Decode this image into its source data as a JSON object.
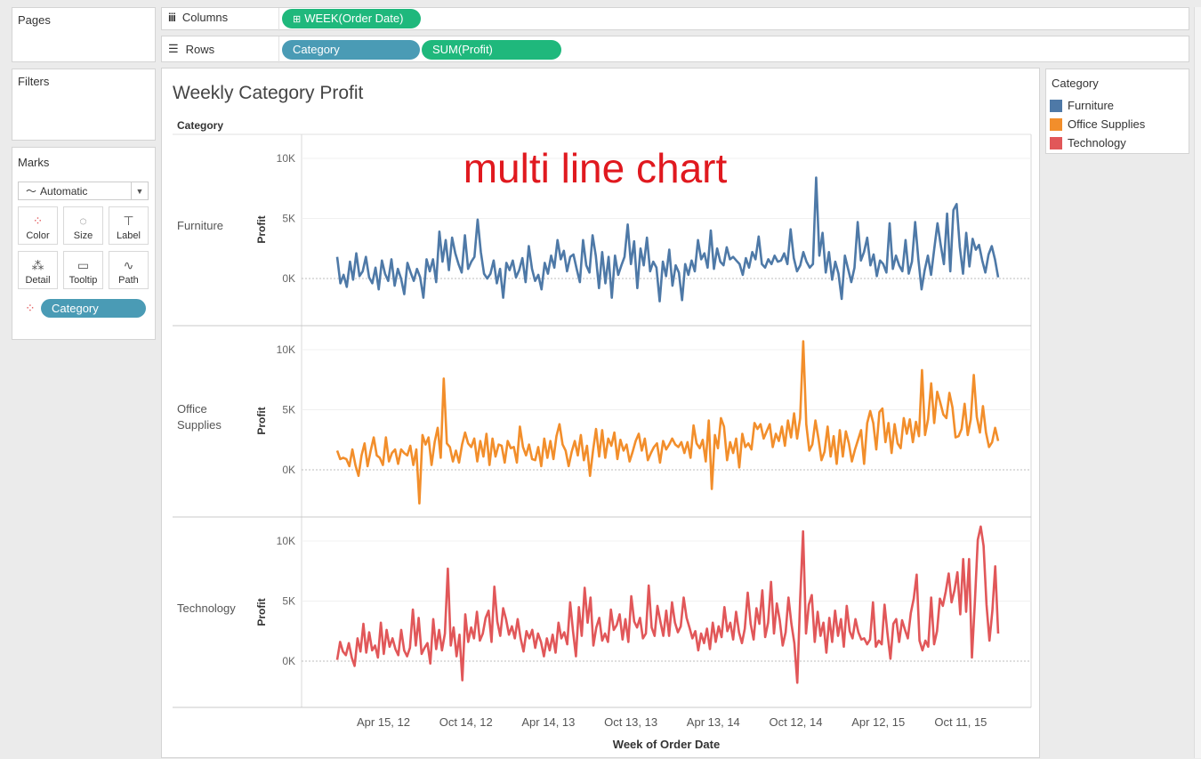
{
  "shelves": {
    "pages_label": "Pages",
    "columns_label": "Columns",
    "rows_label": "Rows",
    "filters_label": "Filters",
    "columns_pill": "WEEK(Order Date)",
    "rows_pills": [
      "Category",
      "SUM(Profit)"
    ]
  },
  "marks": {
    "title": "Marks",
    "type": "Automatic",
    "buttons": [
      "Color",
      "Size",
      "Label",
      "Detail",
      "Tooltip",
      "Path"
    ],
    "field_pill": "Category"
  },
  "legend": {
    "title": "Category",
    "items": [
      {
        "label": "Furniture",
        "color": "#4e79a7"
      },
      {
        "label": "Office Supplies",
        "color": "#f28e2b"
      },
      {
        "label": "Technology",
        "color": "#e15759"
      }
    ]
  },
  "colors": {
    "columns_pill": "#1fb87c",
    "category_pill": "#4a9bb5",
    "profit_pill": "#1fb87c",
    "overlay": "#e0191f"
  },
  "sheet": {
    "title": "Weekly Category Profit",
    "row_header": "Category",
    "overlay_text": "multi line chart"
  },
  "chart_data": {
    "type": "line",
    "title": "Weekly Category Profit",
    "xlabel": "Week of Order Date",
    "ylabel": "Profit",
    "x_ticks": [
      "Apr 15, 12",
      "Oct 14, 12",
      "Apr 14, 13",
      "Oct 13, 13",
      "Apr 13, 14",
      "Oct 12, 14",
      "Apr 12, 15",
      "Oct 11, 15"
    ],
    "y_ticks": [
      "0K",
      "5K",
      "10K"
    ],
    "ylim": [
      -2500,
      11500
    ],
    "grid": true,
    "legend": "right",
    "series": [
      {
        "name": "Furniture",
        "values": [
          1.8,
          -0.4,
          0.3,
          -0.7,
          1.4,
          -0.1,
          2.1,
          0.2,
          0.6,
          1.8,
          0.1,
          -0.4,
          0.9,
          -0.9,
          1.5,
          0.4,
          -0.2,
          1.6,
          -0.6,
          0.8,
          0.0,
          -1.3,
          1.3,
          0.5,
          -0.2,
          0.8,
          0.1,
          -1.6,
          1.6,
          0.6,
          1.6,
          -0.3,
          3.9,
          1.4,
          3.2,
          0.7,
          3.4,
          2.1,
          1.2,
          0.5,
          3.6,
          0.8,
          1.4,
          1.8,
          4.9,
          2.2,
          0.4,
          0.0,
          0.4,
          1.5,
          -0.4,
          0.8,
          -1.6,
          1.3,
          0.7,
          1.5,
          0.1,
          0.7,
          1.7,
          -0.3,
          2.7,
          0.8,
          -0.2,
          0.3,
          -0.9,
          1.3,
          0.4,
          1.9,
          0.9,
          3.2,
          1.6,
          2.3,
          0.6,
          1.8,
          2.0,
          0.8,
          -0.3,
          3.2,
          1.1,
          0.5,
          3.6,
          1.9,
          -0.8,
          2.2,
          -0.4,
          1.8,
          -1.6,
          1.9,
          0.3,
          1.1,
          1.8,
          4.5,
          1.2,
          3.1,
          -0.8,
          2.5,
          1.1,
          3.4,
          0.6,
          1.4,
          0.9,
          -1.9,
          1.4,
          0.2,
          2.4,
          -0.6,
          1.1,
          0.5,
          -1.8,
          1.2,
          0.3,
          1.5,
          0.6,
          3.2,
          1.6,
          2.1,
          0.9,
          4.0,
          0.8,
          2.5,
          1.4,
          1.1,
          2.6,
          1.6,
          1.8,
          1.5,
          1.2,
          0.3,
          1.7,
          0.9,
          2.2,
          1.6,
          3.5,
          1.2,
          0.9,
          1.6,
          1.2,
          1.9,
          1.4,
          1.5,
          2.1,
          1.2,
          4.1,
          1.7,
          0.6,
          1.1,
          2.2,
          1.4,
          0.9,
          1.2,
          8.4,
          1.9,
          3.8,
          0.5,
          2.2,
          -0.1,
          1.4,
          0.4,
          -1.7,
          1.9,
          0.8,
          -0.3,
          0.9,
          4.7,
          1.5,
          2.2,
          3.4,
          1.1,
          2.0,
          0.2,
          1.5,
          1.2,
          0.5,
          4.6,
          0.8,
          1.9,
          1.1,
          0.6,
          3.2,
          0.4,
          1.4,
          4.7,
          1.6,
          -0.9,
          0.7,
          1.9,
          0.3,
          2.5,
          4.6,
          2.8,
          1.2,
          5.4,
          0.6,
          5.7,
          6.2,
          2.6,
          0.4,
          3.8,
          1.0,
          3.3,
          2.4,
          2.8,
          1.5,
          0.5,
          2.0,
          2.7,
          1.6,
          0.1
        ]
      },
      {
        "name": "Office Supplies",
        "values": [
          1.6,
          0.9,
          1.0,
          0.9,
          0.3,
          1.7,
          0.4,
          -0.5,
          1.2,
          2.2,
          0.3,
          1.6,
          2.7,
          1.2,
          1.0,
          0.4,
          2.7,
          0.7,
          1.4,
          1.7,
          0.5,
          1.7,
          1.4,
          1.2,
          2.0,
          0.4,
          1.7,
          -2.8,
          2.9,
          2.1,
          2.7,
          0.4,
          2.3,
          3.5,
          1.0,
          7.6,
          2.2,
          1.9,
          0.7,
          1.6,
          0.6,
          2.1,
          3.1,
          2.2,
          1.9,
          2.6,
          0.7,
          2.4,
          1.1,
          3.0,
          0.4,
          2.6,
          1.1,
          2.1,
          2.0,
          0.6,
          2.4,
          1.8,
          1.9,
          0.6,
          3.6,
          1.9,
          1.2,
          2.1,
          0.9,
          0.8,
          1.9,
          0.3,
          2.6,
          1.0,
          2.4,
          0.9,
          2.8,
          3.8,
          2.1,
          1.6,
          0.3,
          1.5,
          2.4,
          1.2,
          2.9,
          0.8,
          2.0,
          -0.5,
          1.6,
          3.4,
          1.1,
          3.3,
          1.0,
          2.6,
          2.0,
          3.1,
          0.9,
          2.5,
          1.6,
          2.1,
          0.7,
          1.5,
          2.4,
          3.0,
          1.6,
          2.6,
          0.8,
          1.4,
          1.9,
          2.2,
          0.6,
          2.4,
          1.7,
          2.1,
          2.6,
          2.1,
          1.9,
          2.3,
          1.4,
          2.3,
          1.0,
          3.7,
          2.2,
          1.8,
          2.5,
          0.7,
          4.1,
          -1.6,
          2.9,
          1.8,
          4.3,
          3.6,
          0.8,
          2.3,
          1.4,
          2.6,
          0.2,
          3.0,
          1.9,
          2.2,
          1.7,
          3.9,
          3.4,
          3.8,
          2.6,
          3.2,
          3.8,
          1.9,
          3.0,
          2.4,
          3.6,
          2.0,
          4.1,
          2.7,
          4.7,
          2.6,
          4.3,
          10.7,
          3.8,
          1.6,
          2.1,
          4.1,
          2.6,
          0.8,
          1.5,
          3.6,
          1.1,
          2.8,
          0.5,
          3.3,
          1.1,
          3.2,
          2.2,
          0.7,
          1.7,
          2.5,
          3.3,
          0.5,
          3.9,
          4.9,
          3.9,
          1.7,
          4.8,
          5.1,
          2.3,
          3.9,
          1.4,
          3.8,
          2.2,
          1.8,
          4.3,
          3.0,
          4.2,
          2.3,
          4.0,
          2.8,
          8.3,
          2.9,
          4.2,
          7.2,
          3.9,
          6.5,
          5.6,
          4.6,
          4.3,
          6.4,
          5.2,
          2.7,
          2.8,
          3.4,
          5.5,
          2.9,
          4.2,
          7.9,
          4.4,
          3.1,
          5.3,
          3.1,
          1.9,
          2.3,
          3.5,
          2.4
        ]
      },
      {
        "name": "Technology",
        "values": [
          0.1,
          1.6,
          0.8,
          0.5,
          1.5,
          0.3,
          -0.4,
          1.9,
          0.8,
          3.1,
          0.7,
          2.4,
          0.9,
          1.3,
          0.3,
          3.2,
          0.6,
          2.6,
          1.2,
          1.9,
          1.0,
          0.5,
          2.6,
          0.9,
          0.4,
          1.1,
          4.3,
          1.3,
          3.6,
          0.6,
          1.1,
          1.5,
          -0.2,
          3.5,
          1.0,
          2.6,
          0.9,
          2.3,
          7.7,
          1.3,
          2.8,
          0.4,
          2.2,
          -1.6,
          3.9,
          1.6,
          2.8,
          1.9,
          4.1,
          1.7,
          2.3,
          3.6,
          4.2,
          1.6,
          6.2,
          3.3,
          2.1,
          4.4,
          3.5,
          2.2,
          2.9,
          1.9,
          3.5,
          1.9,
          0.8,
          2.5,
          1.9,
          2.6,
          1.1,
          2.3,
          1.6,
          0.4,
          1.9,
          0.9,
          2.2,
          0.7,
          3.2,
          1.9,
          2.4,
          1.4,
          4.9,
          2.5,
          0.4,
          4.5,
          2.1,
          6.1,
          3.2,
          5.3,
          1.3,
          2.8,
          3.6,
          1.7,
          2.3,
          1.6,
          4.3,
          2.6,
          3.0,
          3.9,
          1.8,
          3.5,
          1.6,
          5.4,
          3.3,
          2.8,
          3.6,
          1.9,
          2.3,
          6.3,
          2.8,
          2.1,
          4.6,
          3.3,
          2.1,
          4.2,
          2.1,
          4.9,
          3.2,
          2.4,
          2.9,
          5.3,
          3.6,
          2.8,
          1.9,
          2.5,
          0.9,
          2.3,
          1.5,
          2.7,
          1.0,
          3.2,
          1.6,
          2.9,
          2.0,
          4.5,
          2.5,
          3.2,
          1.8,
          4.1,
          2.4,
          1.5,
          2.7,
          5.7,
          3.1,
          1.8,
          4.4,
          3.1,
          5.9,
          2.0,
          3.2,
          6.6,
          2.3,
          4.8,
          3.4,
          1.3,
          2.4,
          5.3,
          3.1,
          1.5,
          -1.8,
          5.1,
          10.8,
          2.3,
          4.7,
          5.5,
          1.6,
          4.1,
          2.1,
          3.2,
          0.7,
          3.6,
          1.6,
          4.2,
          2.1,
          3.5,
          1.2,
          4.6,
          2.5,
          1.9,
          3.5,
          2.4,
          1.8,
          1.9,
          1.4,
          1.8,
          4.9,
          1.2,
          1.7,
          1.4,
          4.7,
          2.3,
          0.2,
          3.1,
          3.5,
          1.6,
          3.4,
          2.6,
          1.9,
          4.0,
          5.2,
          7.2,
          1.7,
          0.9,
          1.7,
          1.2,
          5.3,
          1.4,
          2.5,
          5.2,
          4.6,
          5.8,
          7.3,
          4.9,
          5.9,
          7.4,
          3.9,
          8.5,
          4.1,
          8.5,
          0.3,
          4.9,
          10.1,
          11.2,
          9.6,
          4.7,
          1.7,
          4.2,
          7.9,
          2.3
        ]
      }
    ]
  }
}
